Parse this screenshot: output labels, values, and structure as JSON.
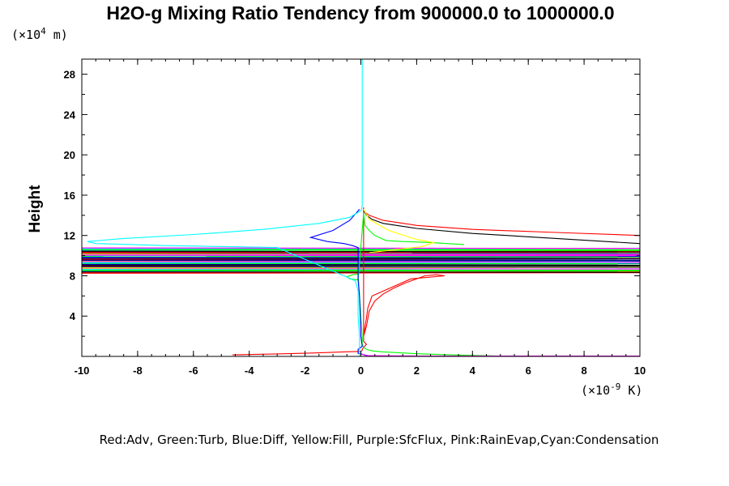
{
  "chart_data": {
    "type": "line",
    "title": "H2O-g Mixing Ratio Tendency from 900000.0 to 1000000.0",
    "ylabel": "Height",
    "yunit_prefix": "(×10",
    "yunit_exp": "4",
    "yunit_suffix": " m)",
    "xunit_prefix": "(×10",
    "xunit_exp": "-9",
    "xunit_suffix": " K)",
    "xlim": [
      -10,
      10
    ],
    "ylim": [
      0,
      29.5
    ],
    "xticks": [
      -10,
      -8,
      -6,
      -4,
      -2,
      0,
      2,
      4,
      6,
      8,
      10
    ],
    "xtick_labels": [
      "-10",
      "-8",
      "-6",
      "-4",
      "-2",
      "0",
      "2",
      "4",
      "6",
      "8",
      "10"
    ],
    "yticks": [
      4,
      8,
      12,
      16,
      20,
      24,
      28
    ],
    "ytick_labels": [
      "4",
      "8",
      "12",
      "16",
      "20",
      "24",
      "28"
    ],
    "grid": false,
    "legend": "Red:Adv, Green:Turb, Blue:Diff, Yellow:Fill, Purple:SfcFlux, Pink:RainEvap,Cyan:Condensation",
    "band_colors": [
      "#ff0000",
      "#000000",
      "#0000ff",
      "#00ff00",
      "#00ffff",
      "#ff00ff",
      "#ffff00",
      "#000080"
    ],
    "series": [
      {
        "color": "#ff0000",
        "x": [
          10,
          7,
          4,
          2,
          0.8,
          0.3,
          0.1,
          0.1,
          0.1,
          0.2,
          0.3,
          0.5,
          0.8,
          1.2,
          1.6,
          2.0,
          2.3,
          2.7,
          3.0,
          3.0,
          1.8,
          0.4,
          0.25,
          0.2,
          0.15,
          0.1,
          0.1,
          0.2,
          0.1,
          0.05,
          0.05,
          0.0,
          -0.6,
          -1.5,
          -3.0,
          -4.6
        ],
        "y": [
          12.0,
          12.3,
          12.6,
          13.0,
          13.5,
          14.0,
          14.4,
          14.8,
          2.0,
          3.0,
          4.5,
          5.5,
          6.2,
          6.8,
          7.3,
          7.7,
          8.0,
          8.1,
          8.0,
          8.0,
          7.7,
          6.0,
          4.8,
          3.8,
          3.0,
          2.0,
          1.5,
          1.2,
          0.9,
          0.7,
          0.6,
          0.5,
          0.45,
          0.35,
          0.25,
          0.15
        ]
      },
      {
        "color": "#000000",
        "x": [
          10,
          7,
          4,
          2,
          0.8,
          0.4,
          0.2,
          0.1
        ],
        "y": [
          11.2,
          11.7,
          12.2,
          12.7,
          13.2,
          13.6,
          14.0,
          14.5
        ]
      },
      {
        "color": "#00ff00",
        "x": [
          3.7,
          2.5,
          1.5,
          0.9,
          0.5,
          0.3,
          0.15,
          0.1,
          -0.1,
          -0.4,
          -0.5,
          -0.3,
          -0.1,
          0.0,
          0.05,
          0.05,
          0.1,
          0.2,
          0.4,
          0.8,
          1.4,
          2.2,
          3.0,
          4.0,
          4.8
        ],
        "y": [
          11.1,
          11.3,
          11.4,
          11.5,
          12.0,
          12.5,
          13.0,
          14.2,
          7.6,
          7.7,
          7.9,
          8.1,
          8.2,
          4.0,
          2.0,
          1.2,
          0.9,
          0.7,
          0.55,
          0.45,
          0.35,
          0.25,
          0.18,
          0.1,
          0.05
        ]
      },
      {
        "color": "#0000ff",
        "x": [
          -0.05,
          -0.4,
          -1.0,
          -1.8,
          -1.2,
          -0.6,
          -0.3,
          -0.1,
          -0.1,
          -0.05,
          -0.02,
          0.0,
          0.05,
          -0.1,
          -0.1,
          0.05,
          0.3
        ],
        "y": [
          14.6,
          13.5,
          12.5,
          11.8,
          11.4,
          11.2,
          11.0,
          10.8,
          7.6,
          6.0,
          4.0,
          2.0,
          1.0,
          0.7,
          0.3,
          0.2,
          0.05
        ]
      },
      {
        "color": "#ffff00",
        "x": [
          0.1,
          0.3,
          1.0,
          2.0,
          2.6,
          2.2,
          0.3
        ],
        "y": [
          14.6,
          13.6,
          12.5,
          11.6,
          11.3,
          10.9,
          10.3
        ]
      },
      {
        "color": "#ff00ff",
        "x": [
          0.0,
          0.1,
          0.2,
          2.0,
          5.0,
          10
        ],
        "y": [
          0.3,
          0.15,
          0.07,
          0.04,
          0.03,
          0.03
        ]
      },
      {
        "color": "#00ffff",
        "x": [
          0.05,
          0.05,
          0.02,
          -0.4,
          -1.5,
          -3.5,
          -6.0,
          -8.5,
          -9.8,
          -9.5,
          -7.0,
          -3.0,
          -0.6,
          -0.2,
          -0.1,
          -0.1,
          -0.05,
          -0.05,
          -0.05
        ],
        "y": [
          29.5,
          15.0,
          14.5,
          13.8,
          13.2,
          12.6,
          12.1,
          11.7,
          11.4,
          11.2,
          11.0,
          10.8,
          8.0,
          7.5,
          6.5,
          4.0,
          2.0,
          1.0,
          0.0
        ]
      }
    ]
  }
}
